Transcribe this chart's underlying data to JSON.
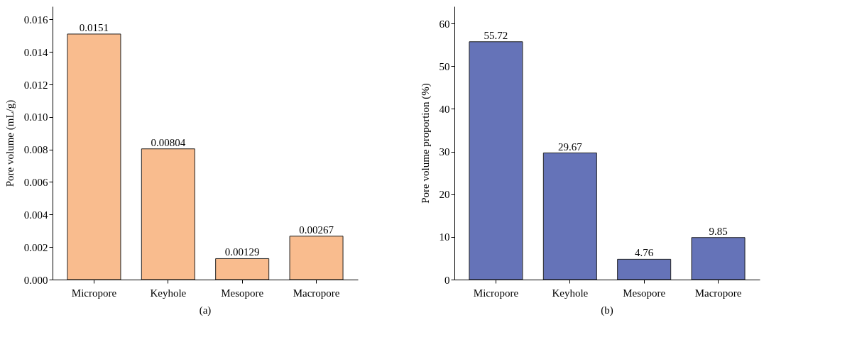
{
  "chart_data": [
    {
      "type": "bar",
      "title": "(a)",
      "ylabel": "Pore volume (mL/g)",
      "categories": [
        "Micropore",
        "Keyhole",
        "Mesopore",
        "Macropore"
      ],
      "series": [
        {
          "color": "#f9bc8e",
          "values": [
            0.0151,
            0.00804,
            0.00129,
            0.00267
          ]
        }
      ],
      "value_labels": [
        "0.0151",
        "0.00804",
        "0.00129",
        "0.00267"
      ],
      "ylim": [
        0,
        0.0168
      ],
      "yticks": [
        {
          "value": 0,
          "label": "0.000"
        },
        {
          "value": 0.002,
          "label": "0.002"
        },
        {
          "value": 0.004,
          "label": "0.004"
        },
        {
          "value": 0.006,
          "label": "0.006"
        },
        {
          "value": 0.008,
          "label": "0.008"
        },
        {
          "value": 0.01,
          "label": "0.010"
        },
        {
          "value": 0.012,
          "label": "0.012"
        },
        {
          "value": 0.014,
          "label": "0.014"
        },
        {
          "value": 0.016,
          "label": "0.016"
        }
      ],
      "grid": false
    },
    {
      "type": "bar",
      "title": "(b)",
      "ylabel": "Pore volume proportion (%)",
      "categories": [
        "Micropore",
        "Keyhole",
        "Mesopore",
        "Macropore"
      ],
      "series": [
        {
          "color": "#6573b8",
          "values": [
            55.72,
            29.67,
            4.76,
            9.85
          ]
        }
      ],
      "data_labels": true,
      "ylim": [
        0,
        64
      ],
      "yticks": [
        0,
        10,
        20,
        30,
        40,
        50,
        60
      ],
      "grid": false
    }
  ]
}
